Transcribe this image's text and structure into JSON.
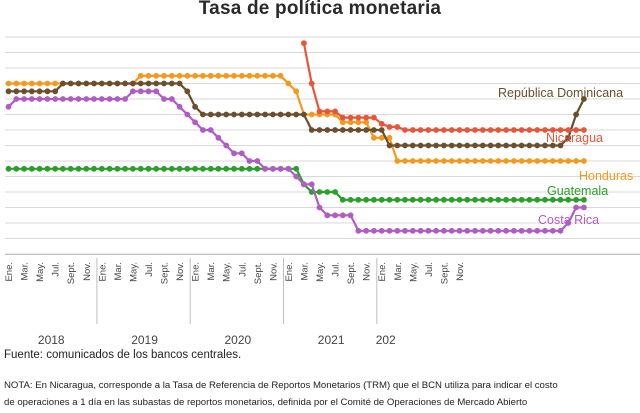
{
  "chart_data": {
    "type": "line",
    "title": "Tasa de política monetaria",
    "ylim": [
      0,
      100
    ],
    "month_labels": [
      "Ene.",
      "Mar.",
      "May.",
      "Jul.",
      "Sept.",
      "Nov."
    ],
    "years": [
      "2018",
      "2019",
      "2020",
      "2021",
      "202"
    ],
    "grid": true,
    "series": [
      {
        "name": "República Dominicana",
        "color": "#6b4e2e",
        "start_index": 0,
        "values": [
          5.25,
          5.25,
          5.25,
          5.25,
          5.25,
          5.25,
          5.25,
          5.5,
          5.5,
          5.5,
          5.5,
          5.5,
          5.5,
          5.5,
          5.5,
          5.5,
          5.5,
          5.5,
          5.5,
          5.5,
          5.5,
          5.5,
          5.5,
          5.25,
          4.75,
          4.5,
          4.5,
          4.5,
          4.5,
          4.5,
          4.5,
          4.5,
          4.5,
          4.5,
          4.5,
          4.5,
          4.5,
          4.5,
          4.5,
          4.0,
          4.0,
          4.0,
          4.0,
          4.0,
          4.0,
          4.0,
          4.0,
          4.0,
          4.0,
          3.5,
          3.5,
          3.5,
          3.5,
          3.5,
          3.5,
          3.5,
          3.5,
          3.5,
          3.5,
          3.5,
          3.5,
          3.5,
          3.5,
          3.5,
          3.5,
          3.5,
          3.5,
          3.5,
          3.5,
          3.5,
          3.5,
          3.5,
          3.75,
          4.5,
          5.0
        ]
      },
      {
        "name": "Nicaragua",
        "color": "#e8563a",
        "start_index": 38,
        "values": [
          6.8,
          5.5,
          4.6,
          4.6,
          4.6,
          4.4,
          4.4,
          4.4,
          4.4,
          4.4,
          4.2,
          4.1,
          4.1,
          4.0,
          4.0,
          4.0,
          4.0,
          4.0,
          4.0,
          4.0,
          4.0,
          4.0,
          4.0,
          4.0,
          4.0,
          4.0,
          4.0,
          4.0,
          4.0,
          4.0,
          4.0,
          4.0,
          4.0,
          4.0,
          4.0,
          4.0,
          4.0
        ]
      },
      {
        "name": "Honduras",
        "color": "#f39a1e",
        "start_index": 0,
        "values": [
          5.5,
          5.5,
          5.5,
          5.5,
          5.5,
          5.5,
          5.5,
          5.5,
          5.5,
          5.5,
          5.5,
          5.5,
          5.5,
          5.5,
          5.5,
          5.5,
          5.5,
          5.75,
          5.75,
          5.75,
          5.75,
          5.75,
          5.75,
          5.75,
          5.75,
          5.75,
          5.75,
          5.75,
          5.75,
          5.75,
          5.75,
          5.75,
          5.75,
          5.75,
          5.75,
          5.75,
          5.5,
          5.25,
          4.5,
          4.5,
          4.5,
          4.5,
          4.5,
          4.25,
          4.25,
          4.25,
          4.25,
          3.75,
          3.75,
          3.75,
          3.0,
          3.0,
          3.0,
          3.0,
          3.0,
          3.0,
          3.0,
          3.0,
          3.0,
          3.0,
          3.0,
          3.0,
          3.0,
          3.0,
          3.0,
          3.0,
          3.0,
          3.0,
          3.0,
          3.0,
          3.0,
          3.0,
          3.0,
          3.0,
          3.0
        ]
      },
      {
        "name": "Guatemala",
        "color": "#2aa02a",
        "start_index": 0,
        "values": [
          2.75,
          2.75,
          2.75,
          2.75,
          2.75,
          2.75,
          2.75,
          2.75,
          2.75,
          2.75,
          2.75,
          2.75,
          2.75,
          2.75,
          2.75,
          2.75,
          2.75,
          2.75,
          2.75,
          2.75,
          2.75,
          2.75,
          2.75,
          2.75,
          2.75,
          2.75,
          2.75,
          2.75,
          2.75,
          2.75,
          2.75,
          2.75,
          2.75,
          2.75,
          2.75,
          2.75,
          2.75,
          2.75,
          2.25,
          2.0,
          2.0,
          2.0,
          2.0,
          1.75,
          1.75,
          1.75,
          1.75,
          1.75,
          1.75,
          1.75,
          1.75,
          1.75,
          1.75,
          1.75,
          1.75,
          1.75,
          1.75,
          1.75,
          1.75,
          1.75,
          1.75,
          1.75,
          1.75,
          1.75,
          1.75,
          1.75,
          1.75,
          1.75,
          1.75,
          1.75,
          1.75,
          1.75,
          1.75,
          1.75,
          1.75
        ]
      },
      {
        "name": "Costa Rica",
        "color": "#b05cc4",
        "start_index": 0,
        "values": [
          4.75,
          5.0,
          5.0,
          5.0,
          5.0,
          5.0,
          5.0,
          5.0,
          5.0,
          5.0,
          5.0,
          5.0,
          5.0,
          5.0,
          5.0,
          5.0,
          5.25,
          5.25,
          5.25,
          5.25,
          5.0,
          5.0,
          4.75,
          4.5,
          4.25,
          4.0,
          4.0,
          3.75,
          3.5,
          3.25,
          3.25,
          3.0,
          3.0,
          2.75,
          2.75,
          2.75,
          2.75,
          2.5,
          2.25,
          2.25,
          1.5,
          1.25,
          1.25,
          1.25,
          1.25,
          0.75,
          0.75,
          0.75,
          0.75,
          0.75,
          0.75,
          0.75,
          0.75,
          0.75,
          0.75,
          0.75,
          0.75,
          0.75,
          0.75,
          0.75,
          0.75,
          0.75,
          0.75,
          0.75,
          0.75,
          0.75,
          0.75,
          0.75,
          0.75,
          0.75,
          0.75,
          0.75,
          1.0,
          1.5,
          1.5
        ]
      }
    ]
  },
  "footer": {
    "source": "Fuente: comunicados de los bancos centrales.",
    "note_line1": "NOTA: En Nicaragua, corresponde a la Tasa de Referencia de Reportos Monetarios (TRM) que el BCN utiliza para indicar el costo",
    "note_line2": "de operaciones a 1 día en las subastas de reportos monetarios, definida por el Comité de Operaciones de Mercado Abierto"
  }
}
